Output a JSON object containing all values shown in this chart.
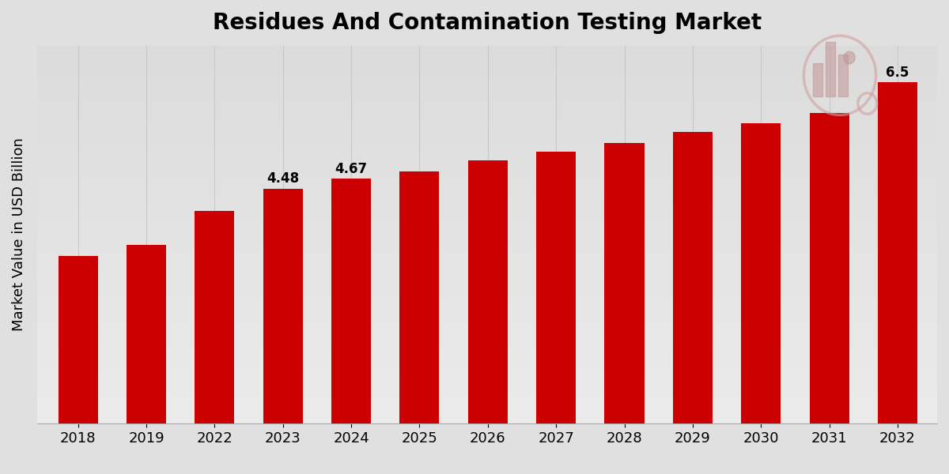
{
  "title": "Residues And Contamination Testing Market",
  "ylabel": "Market Value in USD Billion",
  "categories": [
    "2018",
    "2019",
    "2022",
    "2023",
    "2024",
    "2025",
    "2026",
    "2027",
    "2028",
    "2029",
    "2030",
    "2031",
    "2032"
  ],
  "values": [
    3.2,
    3.4,
    4.05,
    4.48,
    4.67,
    4.8,
    5.02,
    5.18,
    5.35,
    5.55,
    5.72,
    5.92,
    6.5
  ],
  "bar_color": "#CC0000",
  "bar_labels": {
    "2023": "4.48",
    "2024": "4.67",
    "2032": "6.5"
  },
  "grid_color": "#c8c8c8",
  "ylim": [
    0,
    7.2
  ],
  "title_fontsize": 20,
  "ylabel_fontsize": 13,
  "tick_fontsize": 13,
  "label_fontsize": 12,
  "bg_light": "#f0f0f0",
  "bg_dark": "#d0d0d0",
  "bottom_bar_color": "#CC0000",
  "figure_bg": "#e0e0e0"
}
